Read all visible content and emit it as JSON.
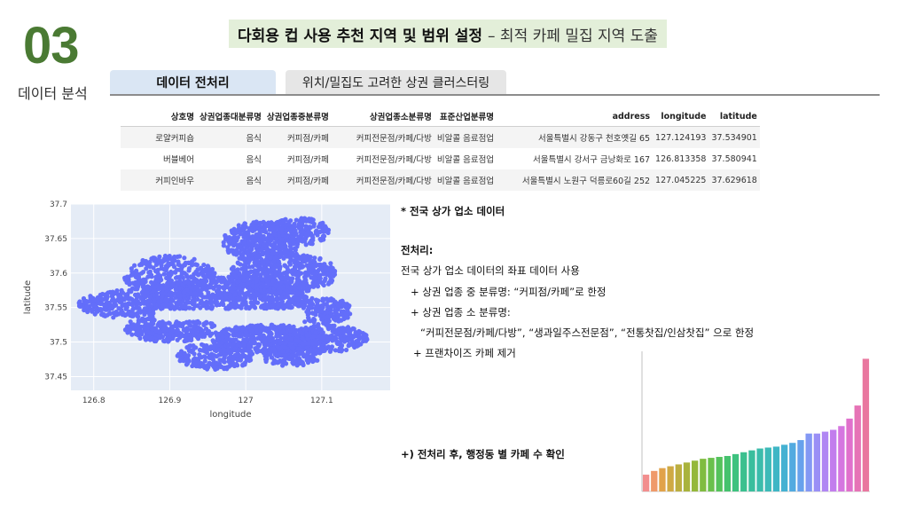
{
  "section": {
    "number": "03",
    "label": "데이터 분석"
  },
  "header": {
    "title_bold": "다회용 컵 사용 추천 지역 및 범위 설정",
    "title_rest": "– 최적 카페 밀집 지역 도출"
  },
  "tabs": [
    {
      "label": "데이터 전처리",
      "active": true
    },
    {
      "label": "위치/밀집도 고려한 상권 클러스터링",
      "active": false
    }
  ],
  "table": {
    "columns": [
      "상호명",
      "상권업종대분류명",
      "상권업종중분류명",
      "상권업종소분류명",
      "표준산업분류명",
      "address",
      "longitude",
      "latitude"
    ],
    "rows": [
      [
        "로얄커피숍",
        "음식",
        "커피점/카페",
        "커피전문점/카페/다방",
        "비알콜 음료점업",
        "서울특별시 강동구 천호옛길 65",
        "127.124193",
        "37.534901"
      ],
      [
        "버블베어",
        "음식",
        "커피점/카페",
        "커피전문점/카페/다방",
        "비알콜 음료점업",
        "서울특별시 강서구 금낭화로 167",
        "126.813358",
        "37.580941"
      ],
      [
        "커피인바우",
        "음식",
        "커피점/카페",
        "커피전문점/카페/다방",
        "비알콜 음료점업",
        "서울특별시 노원구 덕릉로60길 252",
        "127.045225",
        "37.629618"
      ]
    ]
  },
  "notes": {
    "heading": "* 전국 상가 업소 데이터",
    "pre_title": "전처리:",
    "line1": "전국 상가 업소 데이터의 좌표 데이터 사용",
    "line2": "+ 상권 업종 중 분류명: “커피점/카페”로 한정",
    "line3": "+ 상권 업종 소 분류명:",
    "line4": "“커피전문점/카페/다방”, “생과일주스전문점”, “전통찻집/인삼찻집” 으로 한정",
    "line5": "+ 프랜차이즈 카페 제거",
    "footer": "+) 전처리 후, 행정동 별 카페 수 확인"
  },
  "chart_data": [
    {
      "type": "scatter",
      "xlabel": "longitude",
      "ylabel": "latitude",
      "xlim": [
        126.77,
        127.19
      ],
      "ylim": [
        37.43,
        37.7
      ],
      "xticks": [
        "126.8",
        "126.9",
        "127",
        "127.1"
      ],
      "yticks": [
        "37.7",
        "37.65",
        "37.6",
        "37.55",
        "37.5",
        "37.45"
      ],
      "grid": true,
      "point_color": "#636efa",
      "background": "#e5ecf6"
    },
    {
      "type": "bar",
      "values": [
        18,
        22,
        25,
        27,
        29,
        31,
        33,
        35,
        36,
        37,
        38,
        40,
        42,
        44,
        46,
        47,
        48,
        50,
        52,
        55,
        62,
        62,
        64,
        66,
        70,
        78,
        92,
        142
      ],
      "colors": [
        "#f28e8e",
        "#ef9a6a",
        "#e1a24a",
        "#cfa944",
        "#bcae40",
        "#a9b33c",
        "#95b83b",
        "#80bc40",
        "#6ac04c",
        "#55c25c",
        "#45c26e",
        "#3ec27f",
        "#3bc08f",
        "#3abe9d",
        "#3bbcab",
        "#3cbab8",
        "#3fb6c5",
        "#45b1d2",
        "#52aae0",
        "#67a1ec",
        "#8398f4",
        "#9a8ff6",
        "#b086f3",
        "#c27ded",
        "#d576e0",
        "#e070cc",
        "#e673b6",
        "#e9779f"
      ],
      "ylim": [
        0,
        150
      ]
    }
  ]
}
